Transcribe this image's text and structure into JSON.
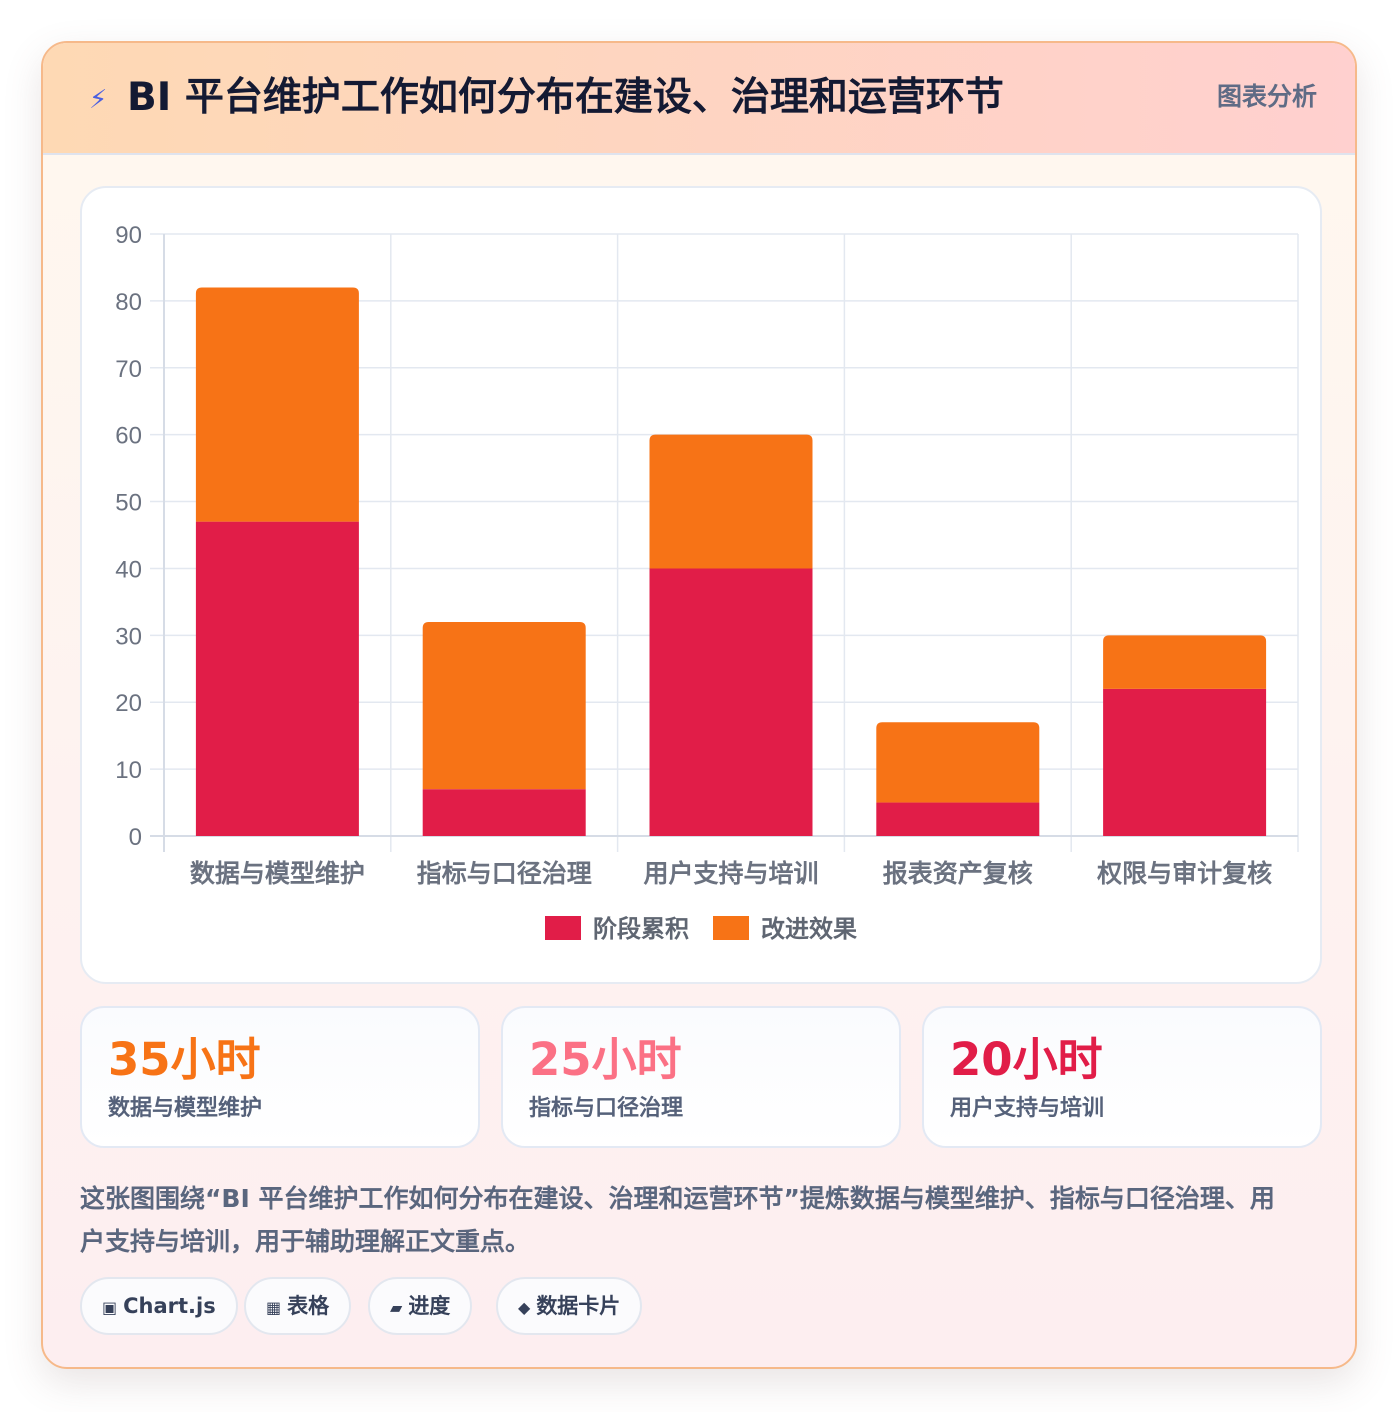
{
  "header": {
    "icon": "lightning-icon",
    "title": "BI 平台维护工作如何分布在建设、治理和运营环节",
    "tag": "图表分析"
  },
  "chart_data": {
    "type": "bar",
    "stacked": true,
    "categories": [
      "数据与模型维护",
      "指标与口径治理",
      "用户支持与培训",
      "报表资产复核",
      "权限与审计复核"
    ],
    "series": [
      {
        "name": "阶段累积",
        "color": "#e11d48",
        "values": [
          47,
          7,
          40,
          5,
          22
        ]
      },
      {
        "name": "改进效果",
        "color": "#f77316",
        "values": [
          35,
          25,
          20,
          12,
          8
        ]
      }
    ],
    "ylim": [
      0,
      90
    ],
    "yticks": [
      0,
      10,
      20,
      30,
      40,
      50,
      60,
      70,
      80,
      90
    ],
    "legend": "bottom",
    "grid": true
  },
  "stats": [
    {
      "value": "35小时",
      "label": "数据与模型维护",
      "color": "#f77316"
    },
    {
      "value": "25小时",
      "label": "指标与口径治理",
      "color": "#fb7185"
    },
    {
      "value": "20小时",
      "label": "用户支持与培训",
      "color": "#e11d48"
    }
  ],
  "description": "这张图围绕“BI 平台维护工作如何分布在建设、治理和运营环节”提炼数据与模型维护、指标与口径治理、用户支持与培训，用于辅助理解正文重点。",
  "chips": [
    {
      "icon": "▣",
      "label": "Chart.js"
    },
    {
      "icon": "▦",
      "label": "表格"
    },
    {
      "icon": "▰",
      "label": "进度"
    },
    {
      "icon": "◆",
      "label": "数据卡片"
    }
  ]
}
